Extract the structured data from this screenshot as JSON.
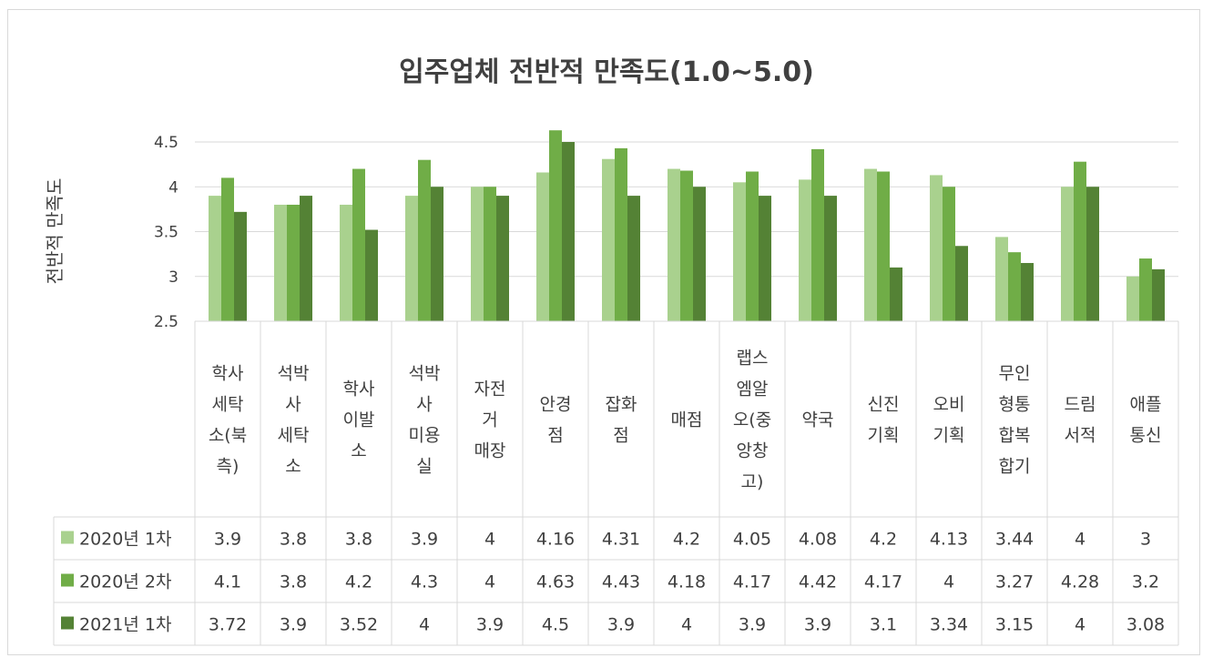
{
  "chart_data": {
    "type": "bar",
    "title": "입주업체 전반적 만족도(1.0~5.0)",
    "ylabel": "전반적 만족도",
    "xlabel": "",
    "ylim": [
      2.5,
      4.5
    ],
    "yticks": [
      "2.5",
      "3",
      "3.5",
      "4",
      "4.5"
    ],
    "grid": true,
    "legend": "data-table",
    "categories": [
      "학사 세탁 소(북 측)",
      "석박 사 세탁 소",
      "학사 이발 소",
      "석박 사 미용 실",
      "자전 거 매장",
      "안경 점",
      "잡화 점",
      "매점",
      "랩스 엠알 오(중 앙창 고)",
      "약국",
      "신진 기획",
      "오비 기획",
      "무인 형통 합복 합기",
      "드림 서적",
      "애플 통신"
    ],
    "category_lines": [
      [
        "학사",
        "세탁",
        "소(북",
        "측)"
      ],
      [
        "석박",
        "사",
        "세탁",
        "소"
      ],
      [
        "학사",
        "이발",
        "소"
      ],
      [
        "석박",
        "사",
        "미용",
        "실"
      ],
      [
        "자전",
        "거",
        "매장"
      ],
      [
        "안경",
        "점"
      ],
      [
        "잡화",
        "점"
      ],
      [
        "매점"
      ],
      [
        "랩스",
        "엠알",
        "오(중",
        "앙창",
        "고)"
      ],
      [
        "약국"
      ],
      [
        "신진",
        "기획"
      ],
      [
        "오비",
        "기획"
      ],
      [
        "무인",
        "형통",
        "합복",
        "합기"
      ],
      [
        "드림",
        "서적"
      ],
      [
        "애플",
        "통신"
      ]
    ],
    "series": [
      {
        "name": "2020년 1차",
        "color": "#a9d18e",
        "values": [
          3.9,
          3.8,
          3.8,
          3.9,
          4,
          4.16,
          4.31,
          4.2,
          4.05,
          4.08,
          4.2,
          4.13,
          3.44,
          4,
          3
        ],
        "labels": [
          "3.9",
          "3.8",
          "3.8",
          "3.9",
          "4",
          "4.16",
          "4.31",
          "4.2",
          "4.05",
          "4.08",
          "4.2",
          "4.13",
          "3.44",
          "4",
          "3"
        ]
      },
      {
        "name": "2020년 2차",
        "color": "#70ad47",
        "values": [
          4.1,
          3.8,
          4.2,
          4.3,
          4,
          4.63,
          4.43,
          4.18,
          4.17,
          4.42,
          4.17,
          4,
          3.27,
          4.28,
          3.2
        ],
        "labels": [
          "4.1",
          "3.8",
          "4.2",
          "4.3",
          "4",
          "4.63",
          "4.43",
          "4.18",
          "4.17",
          "4.42",
          "4.17",
          "4",
          "3.27",
          "4.28",
          "3.2"
        ]
      },
      {
        "name": "2021년 1차",
        "color": "#548235",
        "values": [
          3.72,
          3.9,
          3.52,
          4,
          3.9,
          4.5,
          3.9,
          4,
          3.9,
          3.9,
          3.1,
          3.34,
          3.15,
          4,
          3.08
        ],
        "labels": [
          "3.72",
          "3.9",
          "3.52",
          "4",
          "3.9",
          "4.5",
          "3.9",
          "4",
          "3.9",
          "3.9",
          "3.1",
          "3.34",
          "3.15",
          "4",
          "3.08"
        ]
      }
    ]
  }
}
